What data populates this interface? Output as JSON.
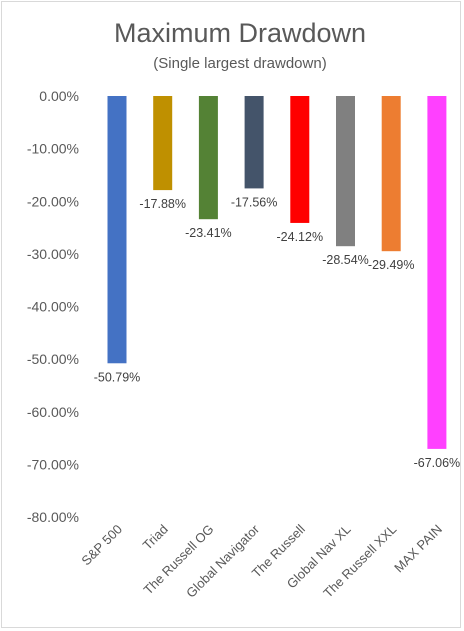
{
  "chart_data": {
    "type": "bar",
    "title": "Maximum Drawdown",
    "subtitle": "(Single largest drawdown)",
    "categories": [
      "S&P 500",
      "Triad",
      "The Russell OG",
      "Global Navigator",
      "The Russell",
      "Global Nav XL",
      "The Russell XXL",
      "MAX PAIN"
    ],
    "values": [
      -50.79,
      -17.88,
      -23.41,
      -17.56,
      -24.12,
      -28.54,
      -29.49,
      -67.06
    ],
    "data_labels": [
      "-50.79%",
      "-17.88%",
      "-23.41%",
      "-17.56%",
      "-24.12%",
      "-28.54%",
      "-29.49%",
      "-67.06%"
    ],
    "colors": [
      "#4472C4",
      "#BF9000",
      "#548235",
      "#44546A",
      "#FF0000",
      "#808080",
      "#ED7D31",
      "#FF40FF"
    ],
    "ylim": [
      -80,
      0
    ],
    "yticks": [
      0,
      -10,
      -20,
      -30,
      -40,
      -50,
      -60,
      -70,
      -80
    ],
    "ytick_labels": [
      "0.00%",
      "-10.00%",
      "-20.00%",
      "-30.00%",
      "-40.00%",
      "-50.00%",
      "-60.00%",
      "-70.00%",
      "-80.00%"
    ],
    "xlabel": "",
    "ylabel": "",
    "grid": false,
    "legend": "none"
  }
}
